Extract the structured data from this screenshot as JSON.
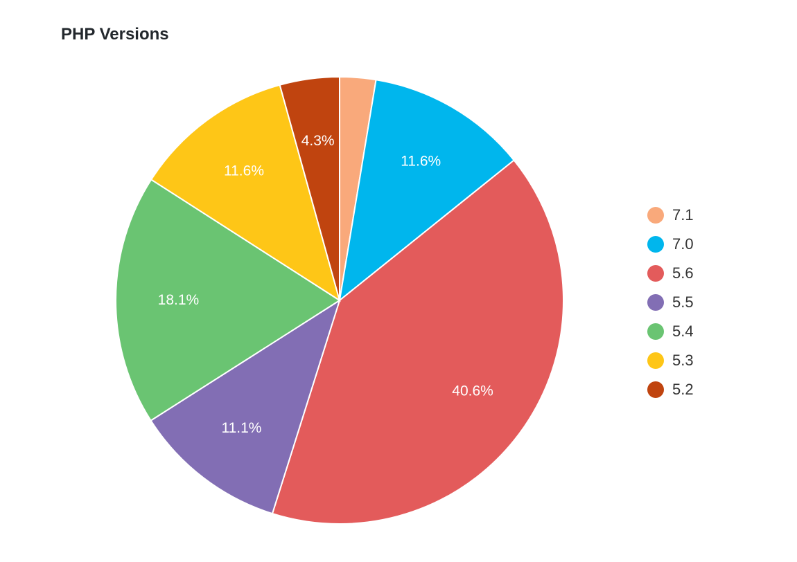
{
  "chart_data": {
    "type": "pie",
    "title": "PHP Versions",
    "categories": [
      "7.1",
      "7.0",
      "5.6",
      "5.5",
      "5.4",
      "5.3",
      "5.2"
    ],
    "values": [
      2.6,
      11.6,
      40.6,
      11.1,
      18.1,
      11.6,
      4.3
    ],
    "value_labels": [
      "",
      "11.6%",
      "40.6%",
      "11.1%",
      "18.1%",
      "11.6%",
      "4.3%"
    ],
    "colors": [
      "#f9a97b",
      "#00b6ed",
      "#e35b5b",
      "#826eb4",
      "#6ac472",
      "#fec617",
      "#c0440f"
    ],
    "start": "top",
    "direction": "clockwise",
    "legend_position": "right"
  }
}
